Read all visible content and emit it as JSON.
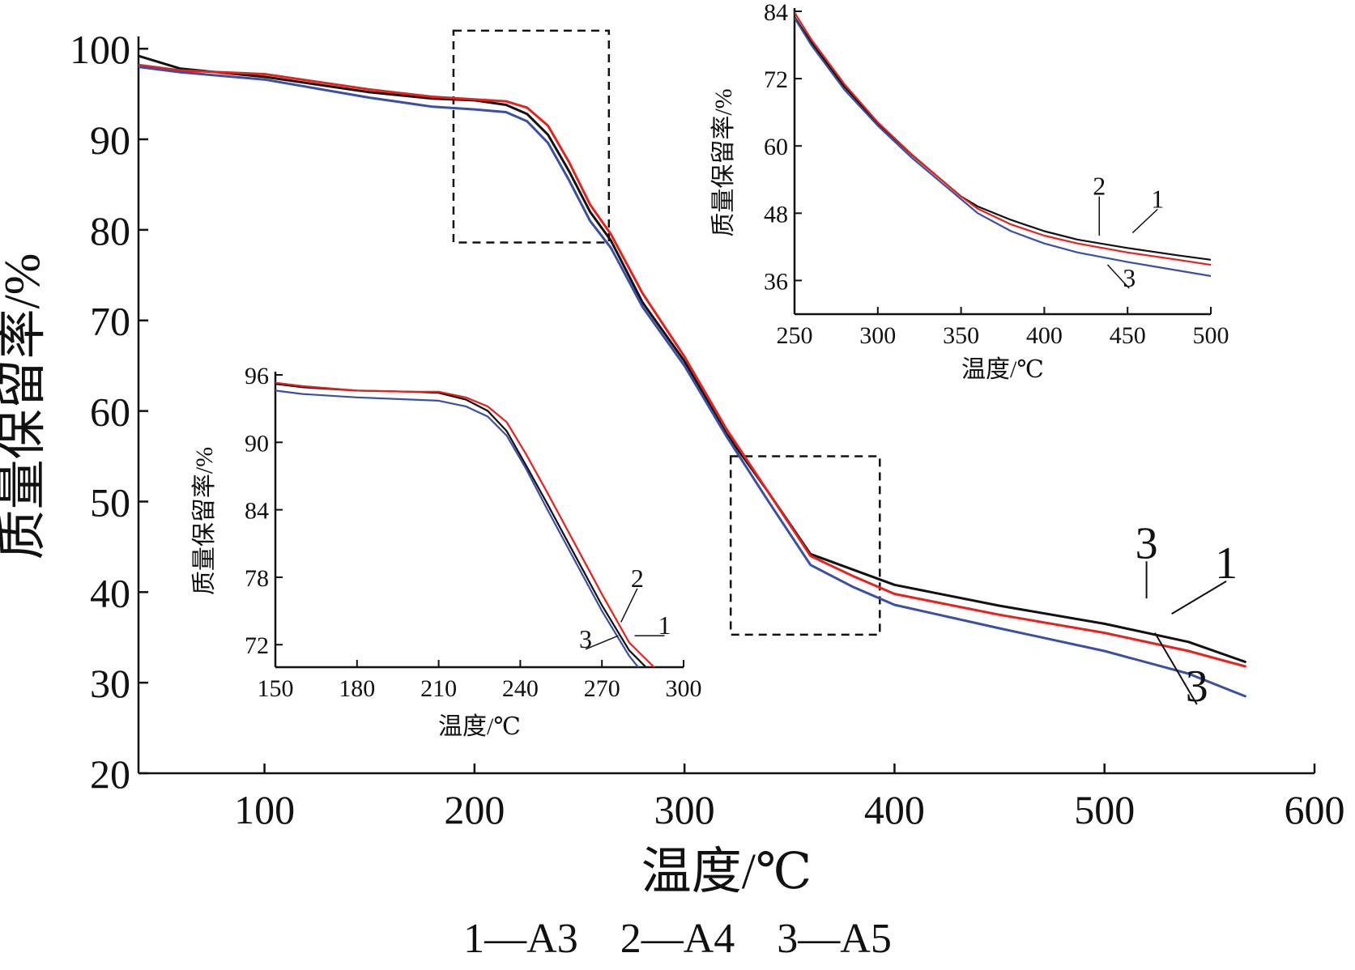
{
  "caption": "1—A3    2—A4    3—A5",
  "colors": {
    "A3": "#111111",
    "A4": "#e8211d",
    "A5": "#3a4fa5",
    "axis": "#111111"
  },
  "chart_data": [
    {
      "type": "line",
      "xlabel": "温度/℃",
      "ylabel": "质量保留率/%",
      "xlim": [
        40,
        600
      ],
      "ylim": [
        20,
        101
      ],
      "xticks": [
        100,
        200,
        300,
        400,
        500,
        600
      ],
      "yticks": [
        20,
        30,
        40,
        50,
        60,
        70,
        80,
        90,
        100
      ],
      "grid": false,
      "series": [
        {
          "name": "1",
          "color": "#111111",
          "x": [
            40,
            60,
            100,
            150,
            180,
            200,
            215,
            225,
            235,
            245,
            255,
            265,
            280,
            300,
            320,
            340,
            360,
            380,
            400,
            450,
            500,
            540,
            567
          ],
          "y": [
            99.2,
            97.8,
            96.9,
            95.2,
            94.5,
            94.3,
            93.8,
            92.8,
            90.5,
            86.5,
            82.0,
            78.8,
            72.0,
            65.5,
            57.5,
            51.0,
            44.2,
            42.5,
            40.8,
            38.5,
            36.5,
            34.5,
            32.3
          ]
        },
        {
          "name": "2",
          "color": "#e8211d",
          "x": [
            40,
            60,
            100,
            150,
            180,
            200,
            215,
            225,
            235,
            245,
            255,
            265,
            280,
            300,
            320,
            340,
            360,
            380,
            400,
            450,
            500,
            540,
            567
          ],
          "y": [
            98.2,
            97.6,
            97.2,
            95.5,
            94.7,
            94.4,
            94.2,
            93.5,
            91.5,
            87.5,
            82.8,
            79.5,
            73.0,
            66.0,
            58.0,
            51.0,
            44.0,
            41.8,
            39.8,
            37.5,
            35.5,
            33.5,
            31.8
          ]
        },
        {
          "name": "3",
          "color": "#3a4fa5",
          "x": [
            40,
            60,
            100,
            150,
            180,
            200,
            215,
            225,
            235,
            245,
            255,
            265,
            280,
            300,
            320,
            340,
            360,
            380,
            400,
            450,
            500,
            540,
            567
          ],
          "y": [
            98.0,
            97.4,
            96.6,
            94.6,
            93.6,
            93.3,
            93.0,
            92.0,
            89.6,
            85.5,
            81.0,
            78.0,
            71.5,
            65.0,
            57.2,
            50.0,
            43.0,
            40.6,
            38.6,
            36.0,
            33.5,
            31.0,
            28.5
          ]
        }
      ],
      "annotations": [
        {
          "text": "3",
          "x": 520,
          "y": 43.4,
          "leader_to": [
            520,
            39.3
          ]
        },
        {
          "text": "1",
          "x": 558,
          "y": 41.2,
          "leader_to": [
            532,
            37.6
          ]
        },
        {
          "text": "3",
          "x": 544,
          "y": 27.6,
          "leader_to": [
            524,
            35.5
          ]
        }
      ],
      "zoom_boxes": [
        {
          "x": [
            190,
            264
          ],
          "y": [
            78.6,
            102
          ]
        },
        {
          "x": [
            322,
            393
          ],
          "y": [
            35.3,
            55.0
          ]
        }
      ]
    },
    {
      "type": "line",
      "xlabel": "温度/℃",
      "ylabel": "质量保留率/%",
      "xlim": [
        150,
        300
      ],
      "ylim": [
        70,
        96
      ],
      "xticks": [
        150,
        180,
        210,
        240,
        270,
        300
      ],
      "yticks": [
        72,
        78,
        84,
        90,
        96
      ],
      "grid": false,
      "series": [
        {
          "name": "1",
          "color": "#111111",
          "x": [
            150,
            160,
            180,
            200,
            210,
            220,
            228,
            235,
            242,
            250,
            260,
            270,
            280,
            287
          ],
          "y": [
            95.2,
            94.9,
            94.6,
            94.5,
            94.4,
            93.8,
            92.8,
            91.0,
            88.0,
            84.5,
            80.0,
            75.5,
            71.5,
            69.8
          ]
        },
        {
          "name": "2",
          "color": "#e8211d",
          "x": [
            150,
            160,
            180,
            200,
            210,
            220,
            228,
            235,
            242,
            250,
            260,
            270,
            280,
            290
          ],
          "y": [
            95.3,
            95.0,
            94.6,
            94.5,
            94.5,
            94.0,
            93.2,
            91.8,
            89.0,
            85.5,
            81.0,
            76.5,
            72.2,
            69.8
          ]
        },
        {
          "name": "3",
          "color": "#3a4fa5",
          "x": [
            150,
            160,
            180,
            200,
            210,
            220,
            228,
            235,
            242,
            250,
            260,
            270,
            280,
            284
          ],
          "y": [
            94.6,
            94.3,
            94.0,
            93.8,
            93.7,
            93.2,
            92.3,
            90.6,
            87.7,
            84.0,
            79.5,
            75.0,
            71.0,
            69.8
          ]
        }
      ],
      "annotations": [
        {
          "text": "2",
          "x": 283,
          "y": 77.0,
          "leader_to": [
            277,
            74.0
          ]
        },
        {
          "text": "1",
          "x": 293,
          "y": 72.8,
          "leader_to": [
            282,
            72.8
          ]
        },
        {
          "text": "3",
          "x": 264,
          "y": 71.6,
          "leader_to": [
            276,
            72.8
          ]
        }
      ]
    },
    {
      "type": "line",
      "xlabel": "温度/℃",
      "ylabel": "质量保留率/%",
      "xlim": [
        250,
        500
      ],
      "ylim": [
        30,
        84
      ],
      "xticks": [
        250,
        300,
        350,
        400,
        450,
        500
      ],
      "yticks": [
        36,
        48,
        60,
        72,
        84
      ],
      "grid": false,
      "series": [
        {
          "name": "1",
          "color": "#111111",
          "x": [
            250,
            260,
            280,
            300,
            320,
            340,
            350,
            360,
            380,
            400,
            420,
            450,
            480,
            500
          ],
          "y": [
            83.0,
            78.5,
            70.5,
            64.0,
            58.5,
            53.5,
            51.0,
            49.2,
            46.8,
            44.8,
            43.3,
            41.8,
            40.5,
            39.7
          ]
        },
        {
          "name": "2",
          "color": "#e8211d",
          "x": [
            250,
            260,
            280,
            300,
            320,
            340,
            350,
            360,
            380,
            400,
            420,
            450,
            480,
            500
          ],
          "y": [
            83.8,
            79.0,
            71.0,
            64.2,
            58.6,
            53.5,
            51.0,
            48.8,
            46.0,
            44.0,
            42.6,
            41.0,
            39.7,
            38.8
          ]
        },
        {
          "name": "3",
          "color": "#3a4fa5",
          "x": [
            250,
            260,
            280,
            300,
            320,
            340,
            350,
            360,
            380,
            400,
            420,
            450,
            480,
            500
          ],
          "y": [
            82.8,
            78.0,
            70.0,
            63.6,
            58.0,
            53.0,
            50.5,
            48.0,
            44.8,
            42.6,
            41.0,
            39.3,
            37.8,
            36.8
          ]
        }
      ],
      "annotations": [
        {
          "text": "2",
          "x": 433,
          "y": 51.0,
          "leader_to": [
            433,
            44.0
          ]
        },
        {
          "text": "1",
          "x": 468,
          "y": 48.7,
          "leader_to": [
            453,
            44.5
          ]
        },
        {
          "text": "3",
          "x": 451,
          "y": 34.6,
          "leader_to": [
            438,
            38.8
          ]
        }
      ]
    }
  ]
}
